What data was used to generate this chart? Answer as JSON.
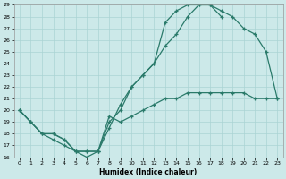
{
  "xlabel": "Humidex (Indice chaleur)",
  "xlim": [
    -0.5,
    23.5
  ],
  "ylim": [
    16,
    29
  ],
  "xticks": [
    0,
    1,
    2,
    3,
    4,
    5,
    6,
    7,
    8,
    9,
    10,
    11,
    12,
    13,
    14,
    15,
    16,
    17,
    18,
    19,
    20,
    21,
    22,
    23
  ],
  "yticks": [
    16,
    17,
    18,
    19,
    20,
    21,
    22,
    23,
    24,
    25,
    26,
    27,
    28,
    29
  ],
  "bg_color": "#cce9e9",
  "grid_color": "#aad4d4",
  "line_color": "#2a7a6a",
  "line1_x": [
    0,
    1,
    2,
    3,
    4,
    5,
    6,
    7,
    8,
    9,
    10,
    11,
    12,
    13,
    14,
    15,
    16,
    17,
    18
  ],
  "line1_y": [
    20.0,
    19.0,
    18.0,
    18.0,
    17.5,
    16.5,
    16.5,
    16.5,
    19.0,
    20.0,
    22.0,
    23.0,
    24.0,
    27.5,
    28.5,
    29.0,
    29.0,
    29.0,
    28.0
  ],
  "line2_x": [
    0,
    1,
    2,
    3,
    4,
    5,
    6,
    7,
    8,
    9,
    10,
    11,
    12,
    13,
    14,
    15,
    16,
    17,
    18,
    19,
    20,
    21,
    22,
    23
  ],
  "line2_y": [
    20.0,
    19.0,
    18.0,
    18.0,
    17.5,
    16.5,
    16.5,
    16.5,
    18.5,
    20.5,
    22.0,
    23.0,
    24.0,
    25.5,
    26.5,
    28.0,
    29.0,
    29.0,
    28.5,
    28.0,
    27.0,
    26.5,
    25.0,
    21.0
  ],
  "line3_x": [
    0,
    1,
    2,
    3,
    4,
    5,
    6,
    7,
    8,
    9,
    10,
    11,
    12,
    13,
    14,
    15,
    16,
    17,
    18,
    19,
    20,
    21,
    22,
    23
  ],
  "line3_y": [
    20.0,
    19.0,
    18.0,
    17.5,
    17.0,
    16.5,
    16.0,
    16.5,
    19.5,
    19.0,
    19.5,
    20.0,
    20.5,
    21.0,
    21.0,
    21.5,
    21.5,
    21.5,
    21.5,
    21.5,
    21.5,
    21.0,
    21.0,
    21.0
  ]
}
